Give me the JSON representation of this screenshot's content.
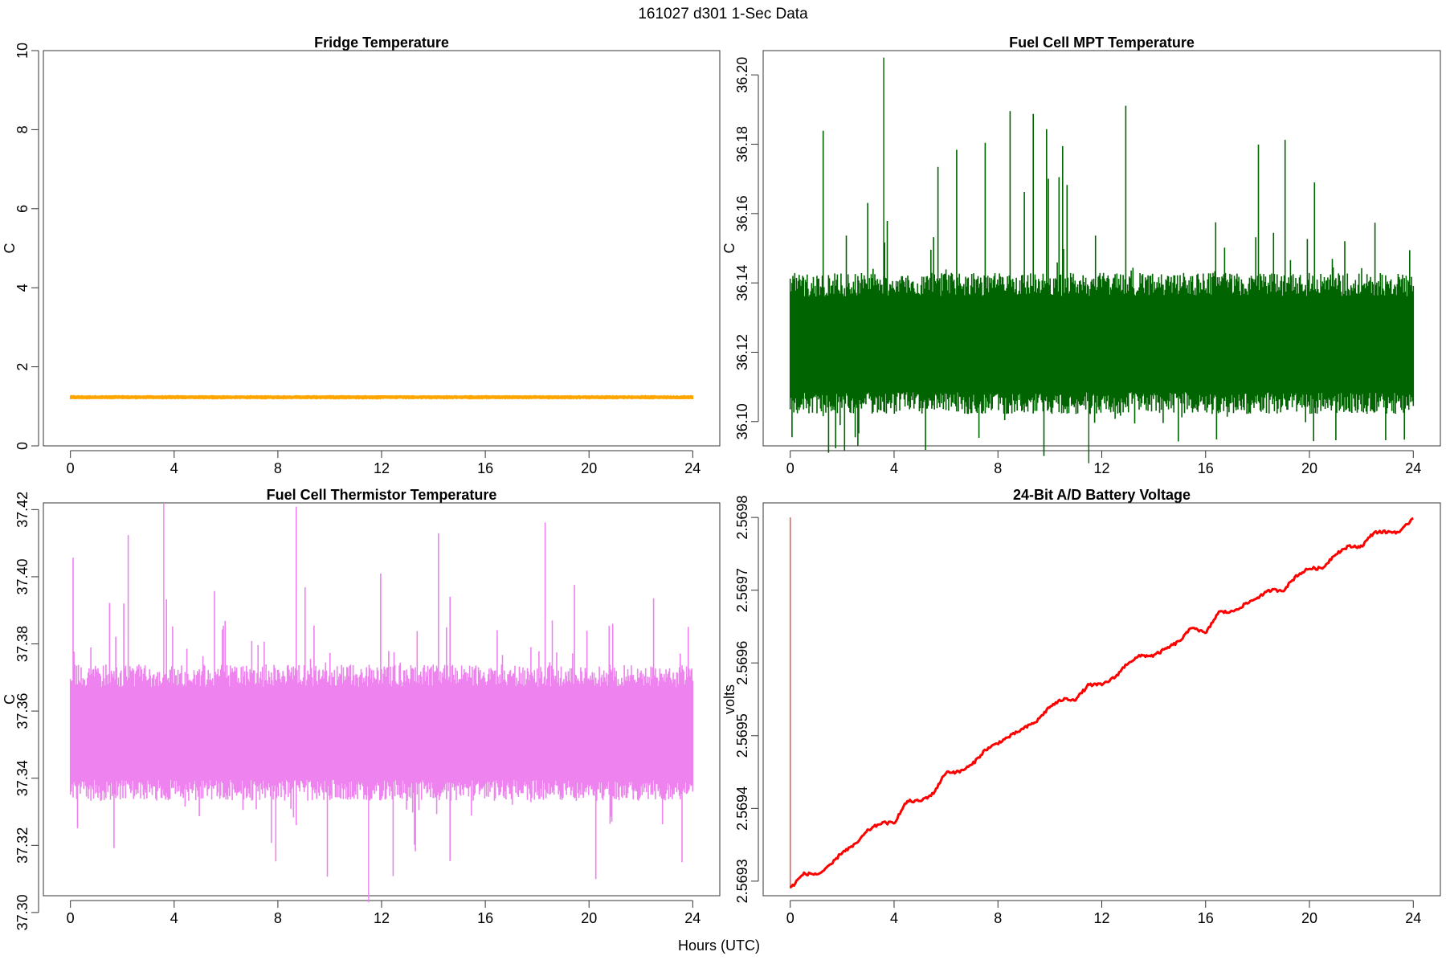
{
  "page": {
    "title": "161027   d301   1-Sec Data",
    "xlabel": "Hours (UTC)"
  },
  "chart_data": [
    {
      "type": "line",
      "id": "fridge",
      "title": "Fridge Temperature",
      "xlabel": "",
      "ylabel": "C",
      "xlim": [
        0,
        24
      ],
      "ylim": [
        0,
        10
      ],
      "xticks": [
        0,
        4,
        8,
        12,
        16,
        20,
        24
      ],
      "yticks": [
        0,
        2,
        4,
        6,
        8,
        10
      ],
      "ytick_labels": [
        "0",
        "2",
        "4",
        "6",
        "8",
        "10"
      ],
      "color": "#FFA500",
      "noisy": true,
      "band": {
        "low": 1.18,
        "high": 1.28
      },
      "series": [
        {
          "x": [
            0,
            4,
            8,
            11.5,
            12,
            12.5,
            16,
            20,
            24
          ],
          "y": [
            1.23,
            1.23,
            1.23,
            1.24,
            1.26,
            1.24,
            1.23,
            1.23,
            1.22
          ]
        }
      ]
    },
    {
      "type": "line",
      "id": "mpt",
      "title": "Fuel Cell MPT Temperature",
      "xlabel": "",
      "ylabel": "C",
      "xlim": [
        0,
        24
      ],
      "ylim": [
        36.093,
        36.207
      ],
      "xticks": [
        0,
        4,
        8,
        12,
        16,
        20,
        24
      ],
      "yticks": [
        36.1,
        36.12,
        36.14,
        36.16,
        36.18,
        36.2
      ],
      "ytick_labels": [
        "36.10",
        "36.12",
        "36.14",
        "36.16",
        "36.18",
        "36.20"
      ],
      "color": "#006400",
      "noisy": true,
      "band": {
        "low": 36.104,
        "high": 36.141
      },
      "series": [
        {
          "x": [
            0,
            3.6,
            8,
            12,
            16,
            19,
            24
          ],
          "y": [
            36.121,
            36.122,
            36.122,
            36.122,
            36.122,
            36.122,
            36.121
          ],
          "max": 36.205,
          "min": 36.088
        }
      ]
    },
    {
      "type": "line",
      "id": "thermistor",
      "title": "Fuel Cell Thermistor Temperature",
      "xlabel": "",
      "ylabel": "C",
      "xlim": [
        0,
        24
      ],
      "ylim": [
        37.305,
        37.422
      ],
      "xticks": [
        0,
        4,
        8,
        12,
        16,
        20,
        24
      ],
      "yticks": [
        37.3,
        37.32,
        37.34,
        37.36,
        37.38,
        37.4,
        37.42
      ],
      "ytick_labels": [
        "37.30",
        "37.32",
        "37.34",
        "37.36",
        "37.38",
        "37.40",
        "37.42"
      ],
      "color": "#EE82EE",
      "noisy": true,
      "band": {
        "low": 37.335,
        "high": 37.372
      },
      "series": [
        {
          "x": [
            0,
            4,
            8,
            12,
            16,
            20,
            24
          ],
          "y": [
            37.353,
            37.353,
            37.353,
            37.353,
            37.353,
            37.353,
            37.352
          ],
          "max": 37.422,
          "min": 37.303
        }
      ]
    },
    {
      "type": "line",
      "id": "battery",
      "title": "24-Bit A/D Battery Voltage",
      "xlabel": "",
      "ylabel": "volts",
      "xlim": [
        0,
        24
      ],
      "ylim": [
        2.56928,
        2.56982
      ],
      "xticks": [
        0,
        4,
        8,
        12,
        16,
        20,
        24
      ],
      "yticks": [
        2.5693,
        2.5694,
        2.5695,
        2.5696,
        2.5697,
        2.5698
      ],
      "ytick_labels": [
        "2.5693",
        "2.5694",
        "2.5695",
        "2.5696",
        "2.5697",
        "2.5698"
      ],
      "color": "#FF0000",
      "noisy": false,
      "spike": {
        "x": 0,
        "y_top": 2.5698,
        "y_bottom": 2.56929
      },
      "series": [
        {
          "x": [
            0,
            0.5,
            1.1,
            1.5,
            2.0,
            2.5,
            3.0,
            3.5,
            4.0,
            4.5,
            5.0,
            5.5,
            6.0,
            6.5,
            7.0,
            7.5,
            8.0,
            8.5,
            9.0,
            9.5,
            10.0,
            10.5,
            11.0,
            11.5,
            12.0,
            12.5,
            13.0,
            13.5,
            14.0,
            14.5,
            15.0,
            15.5,
            16.0,
            16.5,
            17.0,
            17.5,
            18.0,
            18.5,
            19.0,
            19.5,
            20.0,
            20.5,
            21.0,
            21.5,
            22.0,
            22.5,
            23.0,
            23.5,
            24.0
          ],
          "y": [
            2.56929,
            2.56931,
            2.56931,
            2.56932,
            2.56934,
            2.56935,
            2.56937,
            2.56938,
            2.56938,
            2.56941,
            2.56941,
            2.56942,
            2.56945,
            2.56945,
            2.56946,
            2.56948,
            2.56949,
            2.5695,
            2.56951,
            2.56952,
            2.56954,
            2.56955,
            2.56955,
            2.56957,
            2.56957,
            2.56958,
            2.5696,
            2.56961,
            2.56961,
            2.56962,
            2.56963,
            2.56965,
            2.56964,
            2.56967,
            2.56967,
            2.56968,
            2.56969,
            2.5697,
            2.5697,
            2.56972,
            2.56973,
            2.56973,
            2.56975,
            2.56976,
            2.56976,
            2.56978,
            2.56978,
            2.56978,
            2.5698
          ]
        }
      ]
    }
  ]
}
